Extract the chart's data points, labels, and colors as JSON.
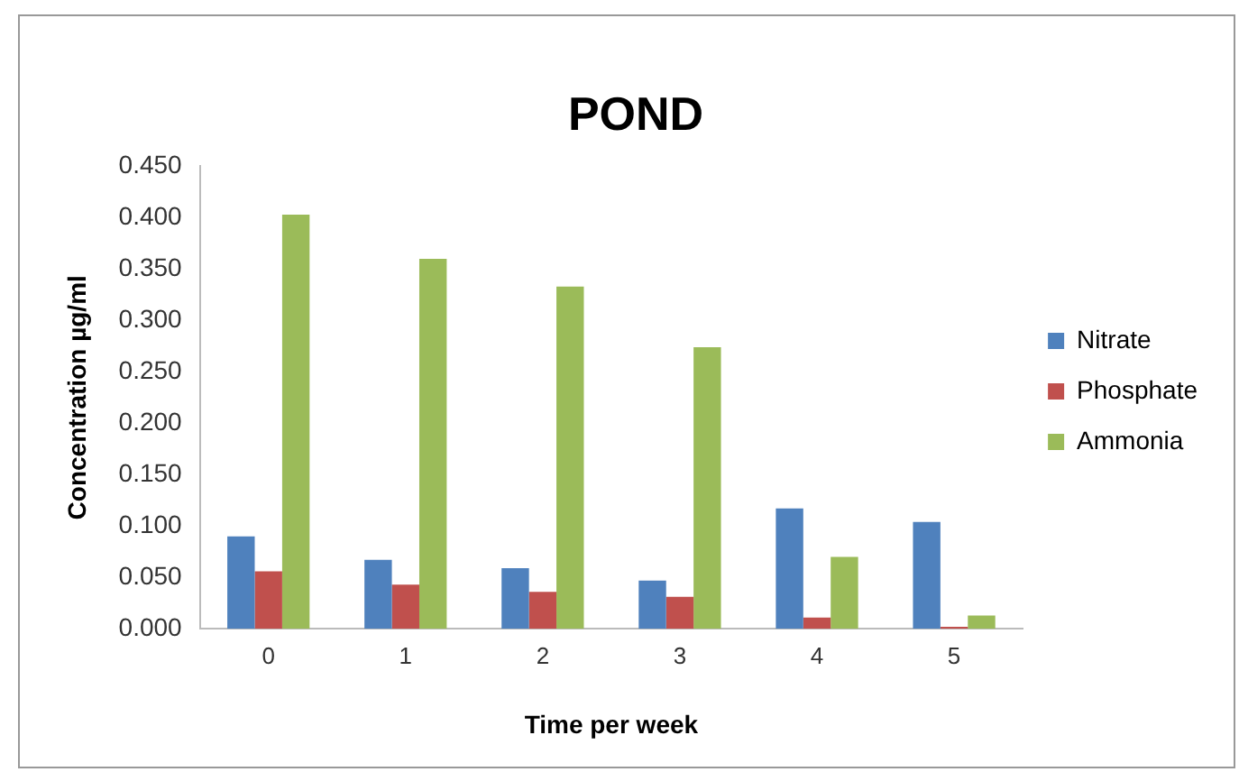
{
  "chart_data": {
    "type": "bar",
    "title": "POND",
    "xlabel": "Time per week",
    "ylabel": "Concentration µg/ml",
    "categories": [
      "0",
      "1",
      "2",
      "3",
      "4",
      "5"
    ],
    "series": [
      {
        "name": "Nitrate",
        "color": "#4f81bd",
        "values": [
          0.09,
          0.067,
          0.059,
          0.047,
          0.117,
          0.104
        ]
      },
      {
        "name": "Phosphate",
        "color": "#c0504d",
        "values": [
          0.056,
          0.043,
          0.036,
          0.031,
          0.011,
          0.002
        ]
      },
      {
        "name": "Ammonia",
        "color": "#9bbb59",
        "values": [
          0.403,
          0.36,
          0.333,
          0.274,
          0.07,
          0.013
        ]
      }
    ],
    "ylim": [
      0,
      0.45
    ],
    "yticks": [
      {
        "value": 0,
        "label": "0.000"
      },
      {
        "value": 0.05,
        "label": "0.050"
      },
      {
        "value": 0.1,
        "label": "0.100"
      },
      {
        "value": 0.15,
        "label": "0.150"
      },
      {
        "value": 0.2,
        "label": "0.200"
      },
      {
        "value": 0.25,
        "label": "0.250"
      },
      {
        "value": 0.3,
        "label": "0.300"
      },
      {
        "value": 0.35,
        "label": "0.350"
      },
      {
        "value": 0.4,
        "label": "0.400"
      },
      {
        "value": 0.45,
        "label": "0.450"
      }
    ],
    "grid": false,
    "legend": "right"
  }
}
